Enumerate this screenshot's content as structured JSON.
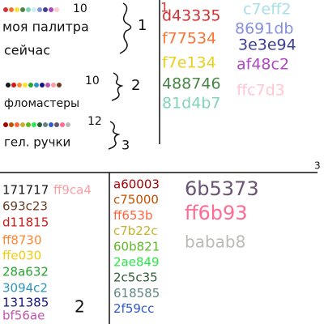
{
  "groups": [
    {
      "count": "10",
      "label": [
        "моя палитра",
        "сейчас"
      ],
      "number": "1"
    },
    {
      "count": "10",
      "label": [
        "фломастеры"
      ],
      "number": "2"
    },
    {
      "count": "12",
      "label": [
        "гел. ручки"
      ],
      "number": "3"
    }
  ],
  "panel_1": {
    "number": "1",
    "codes": [
      {
        "text": "d43335",
        "color": "#d43335"
      },
      {
        "text": "f77534",
        "color": "#f77534"
      },
      {
        "text": "f7e134",
        "color": "#e8d020"
      },
      {
        "text": "488746",
        "color": "#488746"
      },
      {
        "text": "81d4b7",
        "color": "#81d4b7"
      },
      {
        "text": "c7eff2",
        "color": "#a8dfe4"
      },
      {
        "text": "8691db",
        "color": "#8691db"
      },
      {
        "text": "3e3e94",
        "color": "#3e3e94"
      },
      {
        "text": "af48c2",
        "color": "#af48c2"
      },
      {
        "text": "ffc7d3",
        "color": "#ffc7d3"
      }
    ]
  },
  "panel_2": {
    "number": "2",
    "codes": [
      {
        "text": "171717",
        "color": "#171717"
      },
      {
        "text": "ff9ca4",
        "color": "#ff9ca4"
      },
      {
        "text": "693c23",
        "color": "#693c23"
      },
      {
        "text": "d11815",
        "color": "#d11815"
      },
      {
        "text": "ff8730",
        "color": "#ff8730"
      },
      {
        "text": "ffe030",
        "color": "#f0cc10"
      },
      {
        "text": "28a632",
        "color": "#28a632"
      },
      {
        "text": "3094c2",
        "color": "#3094c2"
      },
      {
        "text": "131385",
        "color": "#131385"
      },
      {
        "text": "bf56ae",
        "color": "#bf56ae"
      }
    ]
  },
  "panel_3": {
    "number": "3",
    "codes": [
      {
        "text": "a60003",
        "color": "#a60003"
      },
      {
        "text": "c75000",
        "color": "#c75000"
      },
      {
        "text": "ff653b",
        "color": "#ff653b"
      },
      {
        "text": "c7b22c",
        "color": "#c7b22c"
      },
      {
        "text": "60b821",
        "color": "#60b821"
      },
      {
        "text": "2ae849",
        "color": "#2ae849"
      },
      {
        "text": "2c5c35",
        "color": "#2c5c35"
      },
      {
        "text": "618585",
        "color": "#618585"
      },
      {
        "text": "2f59cc",
        "color": "#2f59cc"
      },
      {
        "text": "6b5373",
        "color": "#6b5373"
      },
      {
        "text": "ff6b93",
        "color": "#ff6b93"
      },
      {
        "text": "babab8",
        "color": "#babab8"
      }
    ]
  }
}
